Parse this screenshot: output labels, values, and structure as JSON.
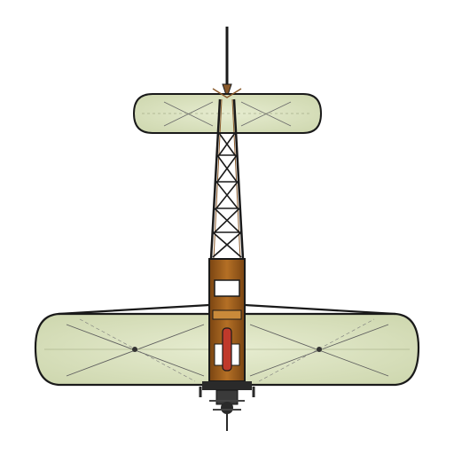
{
  "scene": {
    "subject": "monoplane-top-view",
    "colors": {
      "background": "#ffffff",
      "wing_fill": "#dfe6c4",
      "wing_fill_edge": "#c9d3a6",
      "outline": "#1a1a1a",
      "wire": "#555555",
      "wood": "#a0621f",
      "wood_dark": "#6b3c10",
      "engine": "#2a2a2a",
      "accent_red": "#c0392b"
    }
  }
}
